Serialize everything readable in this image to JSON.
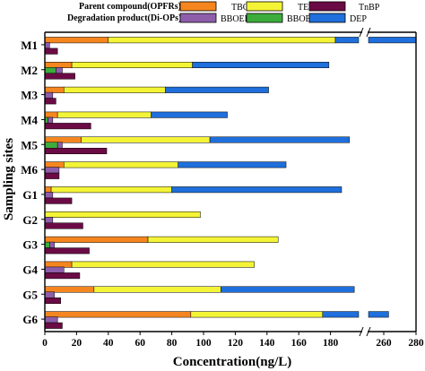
{
  "chart_data": {
    "type": "bar",
    "orientation": "horizontal-stacked",
    "xlabel": "Concentration(ng/L)",
    "ylabel": "Sampling sites",
    "xlim": [
      0,
      280
    ],
    "axis_break": [
      180,
      250
    ],
    "x_ticks": [
      0,
      20,
      40,
      60,
      80,
      100,
      120,
      140,
      160,
      180,
      260,
      280
    ],
    "categories": [
      "M1",
      "M2",
      "M3",
      "M4",
      "M5",
      "M6",
      "G1",
      "G2",
      "G3",
      "G4",
      "G5",
      "G6"
    ],
    "legend": {
      "position": "top",
      "row1_label": "Parent compound(OPFRs):",
      "row2_label": "Degradation product(Di-OPs):"
    },
    "groups": [
      {
        "key": "parent_top",
        "series": [
          "TBOEP",
          "TEP",
          "DEP"
        ]
      },
      {
        "key": "degradation",
        "series": [
          "BBOEP",
          "BBOEHP"
        ]
      },
      {
        "key": "parent_bottom",
        "series": [
          "TnBP"
        ]
      }
    ],
    "series": [
      {
        "name": "TBOEP",
        "color": "#f5861f",
        "values": [
          40,
          17,
          12,
          8,
          23,
          12,
          4,
          0,
          65,
          17,
          31,
          92
        ]
      },
      {
        "name": "BBOEP",
        "color": "#3cad3c",
        "values": [
          0,
          7,
          0,
          2,
          8,
          0,
          0,
          0,
          3,
          0,
          0,
          0
        ]
      },
      {
        "name": "BBOEHP",
        "color": "#8e5eab",
        "values": [
          3,
          4,
          5,
          3,
          3,
          9,
          5,
          5,
          3,
          12,
          6,
          8
        ]
      },
      {
        "name": "TEP",
        "color": "#f4f437",
        "values": [
          143,
          76,
          64,
          59,
          81,
          72,
          76,
          98,
          82,
          115,
          80,
          83
        ]
      },
      {
        "name": "DEP",
        "color": "#1f6fdc",
        "values": [
          137,
          86,
          65,
          48,
          88,
          68,
          107,
          0,
          0,
          0,
          84,
          88
        ]
      },
      {
        "name": "TnBP",
        "color": "#6b0b45",
        "values": [
          8,
          19,
          7,
          29,
          39,
          9,
          17,
          24,
          28,
          22,
          10,
          11
        ]
      }
    ]
  }
}
